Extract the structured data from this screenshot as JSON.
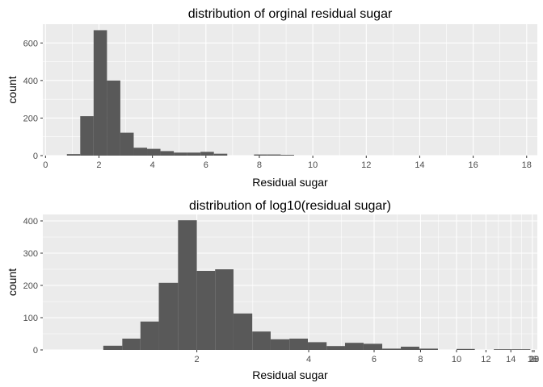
{
  "chart_data": [
    {
      "type": "bar",
      "title": "distribution of orginal residual sugar",
      "xlabel": "Residual sugar",
      "ylabel": "count",
      "x_scale": "linear",
      "xlim": [
        -0.1,
        18.4
      ],
      "ylim": [
        0,
        700
      ],
      "x_ticks": [
        0,
        2,
        4,
        6,
        8,
        10,
        12,
        14,
        16,
        18
      ],
      "y_ticks": [
        0,
        200,
        400,
        600
      ],
      "grid": true,
      "bar_color": "#595959",
      "panel_color": "#ebebeb",
      "bins": [
        {
          "x0": 0.8,
          "x1": 1.3,
          "count": 8
        },
        {
          "x0": 1.3,
          "x1": 1.8,
          "count": 210
        },
        {
          "x0": 1.8,
          "x1": 2.3,
          "count": 668
        },
        {
          "x0": 2.3,
          "x1": 2.8,
          "count": 400
        },
        {
          "x0": 2.8,
          "x1": 3.3,
          "count": 122
        },
        {
          "x0": 3.3,
          "x1": 3.8,
          "count": 42
        },
        {
          "x0": 3.8,
          "x1": 4.3,
          "count": 36
        },
        {
          "x0": 4.3,
          "x1": 4.8,
          "count": 24
        },
        {
          "x0": 4.8,
          "x1": 5.3,
          "count": 16
        },
        {
          "x0": 5.3,
          "x1": 5.8,
          "count": 16
        },
        {
          "x0": 5.8,
          "x1": 6.3,
          "count": 20
        },
        {
          "x0": 6.3,
          "x1": 6.8,
          "count": 10
        },
        {
          "x0": 7.8,
          "x1": 8.3,
          "count": 6
        },
        {
          "x0": 8.3,
          "x1": 8.8,
          "count": 6
        },
        {
          "x0": 8.8,
          "x1": 9.3,
          "count": 4
        }
      ]
    },
    {
      "type": "bar",
      "title": "distribution of log10(residual sugar)",
      "xlabel": "Residual sugar",
      "ylabel": "count",
      "x_scale": "log10",
      "xlim": [
        0.77,
        16.5
      ],
      "ylim": [
        0,
        420
      ],
      "x_ticks": [
        2,
        4,
        6,
        8,
        10,
        12,
        14,
        16,
        18,
        20
      ],
      "y_ticks": [
        0,
        100,
        200,
        300,
        400
      ],
      "grid": true,
      "bar_color": "#595959",
      "panel_color": "#ebebeb",
      "bins": [
        {
          "x0": 1.12,
          "x1": 1.26,
          "count": 13
        },
        {
          "x0": 1.26,
          "x1": 1.41,
          "count": 35
        },
        {
          "x0": 1.41,
          "x1": 1.58,
          "count": 88
        },
        {
          "x0": 1.58,
          "x1": 1.78,
          "count": 208
        },
        {
          "x0": 1.78,
          "x1": 2.0,
          "count": 402
        },
        {
          "x0": 2.0,
          "x1": 2.24,
          "count": 245
        },
        {
          "x0": 2.24,
          "x1": 2.51,
          "count": 250
        },
        {
          "x0": 2.51,
          "x1": 2.82,
          "count": 113
        },
        {
          "x0": 2.82,
          "x1": 3.16,
          "count": 57
        },
        {
          "x0": 3.16,
          "x1": 3.55,
          "count": 33
        },
        {
          "x0": 3.55,
          "x1": 3.98,
          "count": 35
        },
        {
          "x0": 3.98,
          "x1": 4.47,
          "count": 24
        },
        {
          "x0": 4.47,
          "x1": 5.01,
          "count": 12
        },
        {
          "x0": 5.01,
          "x1": 5.62,
          "count": 22
        },
        {
          "x0": 5.62,
          "x1": 6.31,
          "count": 19
        },
        {
          "x0": 6.31,
          "x1": 7.08,
          "count": 4
        },
        {
          "x0": 7.08,
          "x1": 7.94,
          "count": 10
        },
        {
          "x0": 7.94,
          "x1": 8.91,
          "count": 4
        },
        {
          "x0": 10.0,
          "x1": 11.2,
          "count": 3
        },
        {
          "x0": 12.6,
          "x1": 14.1,
          "count": 2
        },
        {
          "x0": 14.1,
          "x1": 15.8,
          "count": 2
        }
      ]
    }
  ]
}
